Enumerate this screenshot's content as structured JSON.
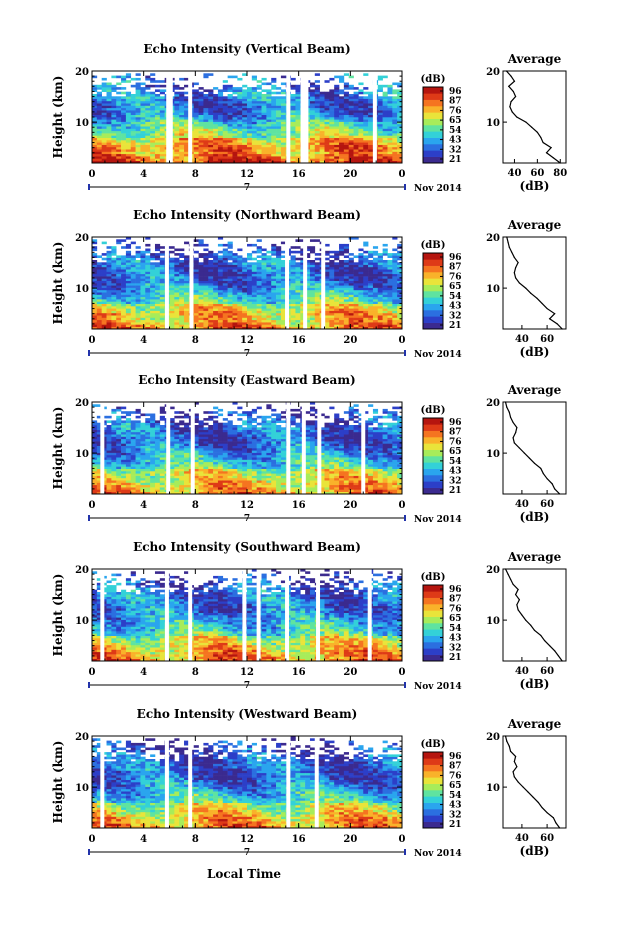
{
  "figure": {
    "xlabel": "Local Time",
    "date_label": "Nov 2014",
    "day_label": "7",
    "colorbar_unit": "(dB)",
    "colorbar_ticks": [
      "96",
      "87",
      "76",
      "65",
      "54",
      "43",
      "32",
      "21"
    ],
    "colormap": [
      "#3b2a8f",
      "#2c3fc8",
      "#2b6fe0",
      "#2aa5ee",
      "#33d1d8",
      "#5fe3a0",
      "#a7ec5a",
      "#e9e43a",
      "#f9b22a",
      "#f57420",
      "#de3a17",
      "#b5150f"
    ],
    "grid": false
  },
  "chart_data": [
    {
      "type": "heatmap",
      "title": "Echo Intensity (Vertical Beam)",
      "ylabel": "Height (km)",
      "x_ticks": [
        "0",
        "4",
        "8",
        "12",
        "16",
        "20",
        "0"
      ],
      "xlim": [
        0,
        24
      ],
      "ylim": [
        2,
        20
      ],
      "y_ticks": [
        "20",
        "10"
      ],
      "gaps_hours": [
        5.9,
        6.1,
        7.6,
        15.2,
        16.3,
        16.6,
        21.9
      ],
      "profile": {
        "title": "Average",
        "xlabel": "(dB)",
        "x_ticks": [
          "40",
          "60",
          "80"
        ],
        "xlim": [
          30,
          85
        ],
        "height_km": [
          2,
          3,
          4,
          5,
          6,
          7,
          8,
          9,
          10,
          11,
          12,
          13,
          14,
          15,
          16,
          17,
          18,
          19,
          20
        ],
        "db": [
          80,
          74,
          68,
          72,
          65,
          63,
          60,
          55,
          50,
          42,
          38,
          36,
          37,
          41,
          39,
          35,
          40,
          37,
          33
        ]
      }
    },
    {
      "type": "heatmap",
      "title": "Echo Intensity (Northward Beam)",
      "ylabel": "Height (km)",
      "x_ticks": [
        "0",
        "4",
        "8",
        "12",
        "16",
        "20",
        "0"
      ],
      "xlim": [
        0,
        24
      ],
      "ylim": [
        2,
        20
      ],
      "y_ticks": [
        "20",
        "10"
      ],
      "gaps_hours": [
        5.8,
        7.7,
        15.1,
        16.5,
        17.9
      ],
      "profile": {
        "title": "Average",
        "xlabel": "(dB)",
        "x_ticks": [
          "40",
          "60"
        ],
        "xlim": [
          25,
          75
        ],
        "height_km": [
          2,
          3,
          4,
          5,
          6,
          7,
          8,
          9,
          10,
          11,
          12,
          13,
          14,
          15,
          16,
          17,
          18,
          19,
          20
        ],
        "db": [
          72,
          68,
          62,
          66,
          60,
          56,
          52,
          47,
          43,
          38,
          35,
          34,
          35,
          37,
          34,
          32,
          30,
          29,
          28
        ]
      }
    },
    {
      "type": "heatmap",
      "title": "Echo Intensity (Eastward Beam)",
      "ylabel": "Height (km)",
      "x_ticks": [
        "0",
        "4",
        "8",
        "12",
        "16",
        "20",
        "0"
      ],
      "xlim": [
        0,
        24
      ],
      "ylim": [
        2,
        20
      ],
      "y_ticks": [
        "20",
        "10"
      ],
      "gaps_hours": [
        0.8,
        5.9,
        7.8,
        15.2,
        16.4,
        17.6,
        21.0
      ],
      "profile": {
        "title": "Average",
        "xlabel": "(dB)",
        "x_ticks": [
          "40",
          "60"
        ],
        "xlim": [
          25,
          75
        ],
        "height_km": [
          2,
          3,
          4,
          5,
          6,
          7,
          8,
          9,
          10,
          11,
          12,
          13,
          14,
          15,
          16,
          17,
          18,
          19,
          20
        ],
        "db": [
          70,
          66,
          64,
          60,
          57,
          55,
          50,
          46,
          42,
          38,
          34,
          33,
          35,
          36,
          33,
          31,
          30,
          28,
          27
        ]
      }
    },
    {
      "type": "heatmap",
      "title": "Echo Intensity (Southward Beam)",
      "ylabel": "Height (km)",
      "x_ticks": [
        "0",
        "4",
        "8",
        "12",
        "16",
        "20",
        "0"
      ],
      "xlim": [
        0,
        24
      ],
      "ylim": [
        2,
        20
      ],
      "y_ticks": [
        "20",
        "10"
      ],
      "gaps_hours": [
        0.8,
        5.8,
        7.6,
        11.8,
        12.9,
        15.1,
        17.5,
        21.5
      ],
      "profile": {
        "title": "Average",
        "xlabel": "(dB)",
        "x_ticks": [
          "40",
          "60"
        ],
        "xlim": [
          25,
          75
        ],
        "height_km": [
          2,
          3,
          4,
          5,
          6,
          7,
          8,
          9,
          10,
          11,
          12,
          13,
          14,
          15,
          16,
          17,
          18,
          19,
          20
        ],
        "db": [
          72,
          69,
          66,
          62,
          58,
          55,
          50,
          47,
          43,
          40,
          37,
          36,
          38,
          35,
          37,
          33,
          31,
          29,
          27
        ]
      }
    },
    {
      "type": "heatmap",
      "title": "Echo Intensity (Westward Beam)",
      "ylabel": "Height (km)",
      "x_ticks": [
        "0",
        "4",
        "8",
        "12",
        "16",
        "20",
        "0"
      ],
      "xlim": [
        0,
        24
      ],
      "ylim": [
        2,
        20
      ],
      "y_ticks": [
        "20",
        "10"
      ],
      "gaps_hours": [
        0.8,
        5.8,
        7.6,
        15.2,
        17.4
      ],
      "profile": {
        "title": "Average",
        "xlabel": "(dB)",
        "x_ticks": [
          "40",
          "60"
        ],
        "xlim": [
          25,
          75
        ],
        "height_km": [
          2,
          3,
          4,
          5,
          6,
          7,
          8,
          9,
          10,
          11,
          12,
          13,
          14,
          15,
          16,
          17,
          18,
          19,
          20
        ],
        "db": [
          70,
          67,
          65,
          60,
          56,
          53,
          49,
          45,
          41,
          37,
          34,
          33,
          36,
          34,
          35,
          31,
          30,
          28,
          27
        ]
      }
    }
  ]
}
